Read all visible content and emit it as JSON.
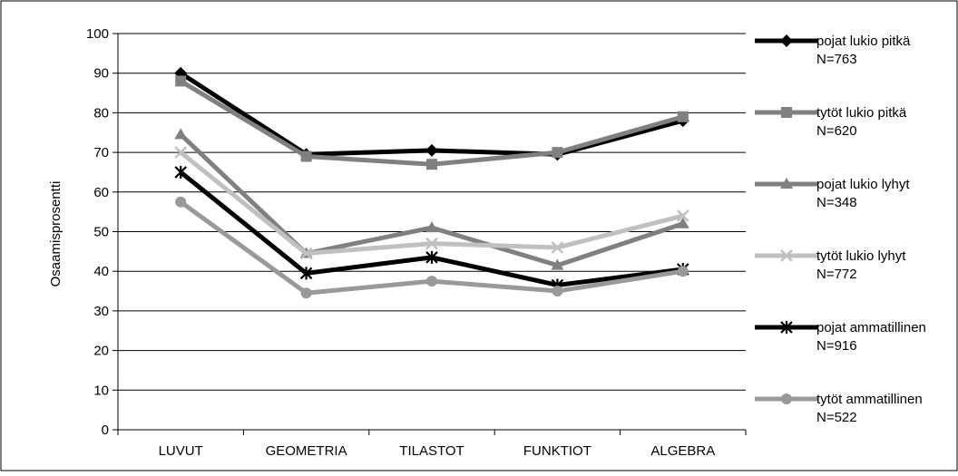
{
  "chart_data": {
    "type": "line",
    "title": "",
    "xlabel": "",
    "ylabel": "Osaamisprosentti",
    "ylim": [
      0,
      100
    ],
    "yticks": [
      0,
      10,
      20,
      30,
      40,
      50,
      60,
      70,
      80,
      90,
      100
    ],
    "grid": "horizontal",
    "legend_position": "right",
    "categories": [
      "LUVUT",
      "GEOMETRIA",
      "TILASTOT",
      "FUNKTIOT",
      "ALGEBRA"
    ],
    "series": [
      {
        "name": "pojat lukio pitkä",
        "n_label": "N=763",
        "color": "#000000",
        "marker": "diamond",
        "values": [
          90,
          69.5,
          70.5,
          69.5,
          78
        ]
      },
      {
        "name": "tytöt lukio pitkä",
        "n_label": "N=620",
        "color": "#808080",
        "marker": "square",
        "values": [
          88,
          69,
          67,
          70,
          79
        ]
      },
      {
        "name": "pojat lukio lyhyt",
        "n_label": "N=348",
        "color": "#808080",
        "marker": "triangle",
        "values": [
          74.5,
          44.5,
          51,
          41.5,
          52
        ]
      },
      {
        "name": "tytöt lukio lyhyt",
        "n_label": "N=772",
        "color": "#c0c0c0",
        "marker": "x",
        "values": [
          70,
          44.5,
          47,
          46,
          54
        ]
      },
      {
        "name": "pojat ammatillinen",
        "n_label": "N=916",
        "color": "#000000",
        "marker": "star",
        "values": [
          65,
          39.5,
          43.5,
          36.5,
          40.5
        ]
      },
      {
        "name": "tytöt ammatillinen",
        "n_label": "N=522",
        "color": "#999999",
        "marker": "circle",
        "values": [
          57.5,
          34.5,
          37.5,
          35,
          40
        ]
      }
    ]
  }
}
